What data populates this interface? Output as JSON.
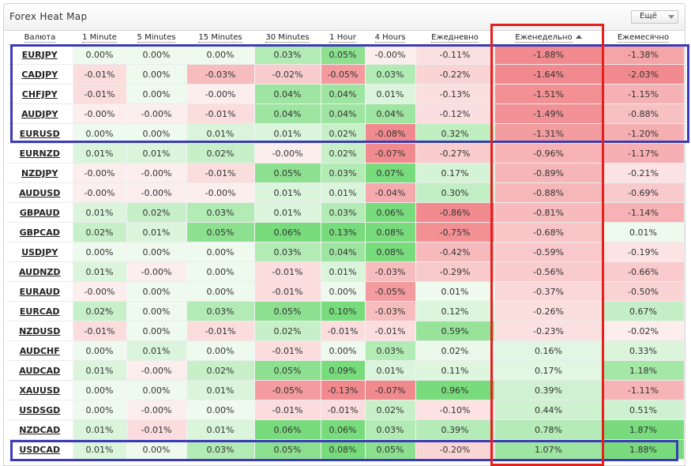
{
  "title": "Forex Heat Map",
  "more_label": "Ещё",
  "columns": [
    "Валюта",
    "1 Minute",
    "5 Minutes",
    "15 Minutes",
    "30 Minutes",
    "1 Hour",
    "4 Hours",
    "Ежедневно",
    "Еженедельно",
    "Ежемесячно"
  ],
  "sorted_column": "Еженедельно",
  "colors": {
    "negative_strong": "#f18a8e",
    "positive_strong": "#78db7c",
    "neutral_negative": "#fdeeee",
    "neutral_positive": "#eefaee",
    "highlight_blue": "#3b3bb8",
    "highlight_red": "#e8201c"
  },
  "rows": [
    {
      "pair": "EURJPY",
      "values": [
        "0.00%",
        "0.00%",
        "0.00%",
        "0.03%",
        "0.05%",
        "-0.00%",
        "-0.11%",
        "-1.88%",
        "-1.38%"
      ]
    },
    {
      "pair": "CADJPY",
      "values": [
        "-0.01%",
        "0.00%",
        "-0.03%",
        "-0.02%",
        "-0.05%",
        "0.03%",
        "-0.22%",
        "-1.64%",
        "-2.03%"
      ]
    },
    {
      "pair": "CHFJPY",
      "values": [
        "-0.01%",
        "0.00%",
        "-0.00%",
        "0.04%",
        "0.04%",
        "0.01%",
        "-0.13%",
        "-1.51%",
        "-1.15%"
      ]
    },
    {
      "pair": "AUDJPY",
      "values": [
        "-0.00%",
        "-0.00%",
        "-0.01%",
        "0.04%",
        "0.04%",
        "0.04%",
        "-0.12%",
        "-1.49%",
        "-0.88%"
      ]
    },
    {
      "pair": "EURUSD",
      "values": [
        "0.00%",
        "0.00%",
        "0.01%",
        "0.01%",
        "0.02%",
        "-0.08%",
        "0.32%",
        "-1.31%",
        "-1.20%"
      ]
    },
    {
      "pair": "EURNZD",
      "values": [
        "0.01%",
        "0.01%",
        "0.02%",
        "-0.00%",
        "0.02%",
        "-0.07%",
        "-0.27%",
        "-0.96%",
        "-1.17%"
      ]
    },
    {
      "pair": "NZDJPY",
      "values": [
        "-0.00%",
        "-0.00%",
        "-0.01%",
        "0.05%",
        "0.03%",
        "0.07%",
        "0.17%",
        "-0.89%",
        "-0.21%"
      ]
    },
    {
      "pair": "AUDUSD",
      "values": [
        "-0.00%",
        "-0.00%",
        "-0.00%",
        "0.01%",
        "0.01%",
        "-0.04%",
        "0.30%",
        "-0.88%",
        "-0.69%"
      ]
    },
    {
      "pair": "GBPAUD",
      "values": [
        "0.01%",
        "0.02%",
        "0.03%",
        "0.01%",
        "0.03%",
        "0.06%",
        "-0.86%",
        "-0.81%",
        "-1.14%"
      ]
    },
    {
      "pair": "GBPCAD",
      "values": [
        "0.02%",
        "0.01%",
        "0.05%",
        "0.06%",
        "0.13%",
        "0.08%",
        "-0.75%",
        "-0.68%",
        "0.01%"
      ]
    },
    {
      "pair": "USDJPY",
      "values": [
        "0.00%",
        "0.00%",
        "0.00%",
        "0.03%",
        "0.04%",
        "0.08%",
        "-0.42%",
        "-0.59%",
        "-0.19%"
      ]
    },
    {
      "pair": "AUDNZD",
      "values": [
        "0.01%",
        "-0.00%",
        "0.00%",
        "-0.01%",
        "0.01%",
        "-0.03%",
        "-0.29%",
        "-0.56%",
        "-0.66%"
      ]
    },
    {
      "pair": "EURAUD",
      "values": [
        "-0.00%",
        "0.00%",
        "0.00%",
        "-0.01%",
        "0.00%",
        "-0.05%",
        "0.01%",
        "-0.37%",
        "-0.50%"
      ]
    },
    {
      "pair": "EURCAD",
      "values": [
        "0.02%",
        "0.00%",
        "0.03%",
        "0.05%",
        "0.10%",
        "-0.03%",
        "0.12%",
        "-0.26%",
        "0.67%"
      ]
    },
    {
      "pair": "NZDUSD",
      "values": [
        "-0.01%",
        "0.00%",
        "-0.01%",
        "0.02%",
        "-0.01%",
        "-0.01%",
        "0.59%",
        "-0.23%",
        "-0.02%"
      ]
    },
    {
      "pair": "AUDCHF",
      "values": [
        "0.00%",
        "0.01%",
        "0.00%",
        "-0.01%",
        "0.00%",
        "0.03%",
        "0.02%",
        "0.16%",
        "0.33%"
      ]
    },
    {
      "pair": "AUDCAD",
      "values": [
        "0.01%",
        "-0.00%",
        "0.02%",
        "0.05%",
        "0.09%",
        "0.01%",
        "0.11%",
        "0.17%",
        "1.18%"
      ]
    },
    {
      "pair": "XAUUSD",
      "values": [
        "0.00%",
        "0.00%",
        "0.01%",
        "-0.05%",
        "-0.13%",
        "-0.07%",
        "0.96%",
        "0.39%",
        "-1.11%"
      ]
    },
    {
      "pair": "USDSGD",
      "values": [
        "0.00%",
        "-0.00%",
        "0.00%",
        "-0.01%",
        "-0.01%",
        "0.02%",
        "-0.10%",
        "0.44%",
        "0.51%"
      ]
    },
    {
      "pair": "NZDCAD",
      "values": [
        "0.01%",
        "-0.01%",
        "0.01%",
        "0.06%",
        "0.06%",
        "0.03%",
        "0.39%",
        "0.78%",
        "1.87%"
      ]
    },
    {
      "pair": "USDCAD",
      "values": [
        "0.01%",
        "0.00%",
        "0.03%",
        "0.05%",
        "0.08%",
        "0.05%",
        "-0.20%",
        "1.07%",
        "1.88%"
      ]
    }
  ]
}
